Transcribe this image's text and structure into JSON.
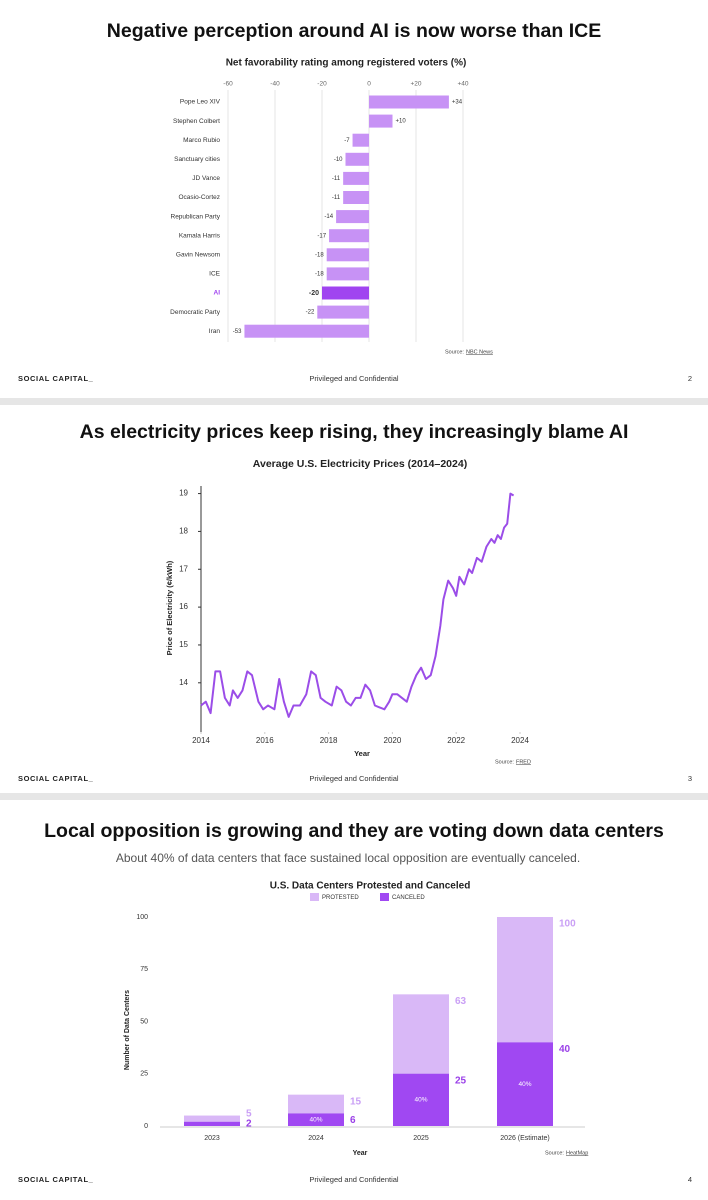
{
  "footer": {
    "brand": "SOCIAL CAPITAL_",
    "center": "Privileged and Confidential"
  },
  "slides": [
    {
      "title": "Negative perception around AI is now worse than ICE",
      "page": 2
    },
    {
      "title": "As electricity prices keep rising, they increasingly blame AI",
      "page": 3
    },
    {
      "title": "Local opposition is growing and they are voting down data centers",
      "subtitle": "About 40% of data centers that face sustained local opposition are eventually canceled.",
      "page": 4
    }
  ],
  "chart_data": [
    {
      "type": "barh",
      "title": "Net favorability rating among registered voters (%)",
      "categories": [
        "Pope Leo XIV",
        "Stephen Colbert",
        "Marco Rubio",
        "Sanctuary cities",
        "JD Vance",
        "Ocasio-Cortez",
        "Republican Party",
        "Kamala Harris",
        "Gavin Newsom",
        "ICE",
        "AI",
        "Democratic Party",
        "Iran"
      ],
      "values": [
        34,
        10,
        -7,
        -10,
        -11,
        -11,
        -14,
        -17,
        -18,
        -18,
        -20,
        -22,
        -53
      ],
      "value_labels": [
        "+34",
        "+10",
        "-7",
        "-10",
        "-11",
        "-11",
        "-14",
        "-17",
        "-18",
        "-18",
        "-20",
        "-22",
        "-53"
      ],
      "color": "#c792f5",
      "colors": [
        "#c792f5",
        "#c792f5",
        "#c792f5",
        "#c792f5",
        "#c792f5",
        "#c792f5",
        "#c792f5",
        "#c792f5",
        "#c792f5",
        "#c792f5",
        "#a044f0",
        "#c792f5",
        "#c792f5"
      ],
      "xlim": [
        -60,
        40
      ],
      "xticks": [
        -60,
        -40,
        -20,
        0,
        {
          "value": 20,
          "label": "+20"
        },
        {
          "value": 40,
          "label": "+40"
        }
      ],
      "grid": true,
      "source": {
        "label": "Source:",
        "name": "NBC News"
      }
    },
    {
      "type": "line",
      "title": "Average U.S. Electricity Prices (2014–2024)",
      "x_label": "Year",
      "y_label": "Price of Electricity (¢/kWh)",
      "color": "#9b4de8",
      "x": [
        2014.0,
        2014.15,
        2014.3,
        2014.45,
        2014.6,
        2014.75,
        2014.9,
        2015.0,
        2015.15,
        2015.3,
        2015.45,
        2015.6,
        2015.8,
        2015.95,
        2016.1,
        2016.3,
        2016.45,
        2016.6,
        2016.75,
        2016.9,
        2017.1,
        2017.3,
        2017.45,
        2017.6,
        2017.75,
        2017.9,
        2018.1,
        2018.25,
        2018.4,
        2018.55,
        2018.7,
        2018.85,
        2019.0,
        2019.15,
        2019.3,
        2019.45,
        2019.6,
        2019.75,
        2019.9,
        2020.0,
        2020.15,
        2020.3,
        2020.45,
        2020.6,
        2020.75,
        2020.9,
        2021.05,
        2021.2,
        2021.35,
        2021.5,
        2021.6,
        2021.75,
        2021.9,
        2022.0,
        2022.1,
        2022.25,
        2022.4,
        2022.5,
        2022.65,
        2022.8,
        2022.95,
        2023.1,
        2023.2,
        2023.3,
        2023.4,
        2023.5,
        2023.6,
        2023.7,
        2023.8
      ],
      "values": [
        13.4,
        13.5,
        13.2,
        14.3,
        14.3,
        13.6,
        13.4,
        13.8,
        13.6,
        13.8,
        14.3,
        14.2,
        13.5,
        13.3,
        13.4,
        13.3,
        14.1,
        13.5,
        13.1,
        13.4,
        13.4,
        13.7,
        14.3,
        14.2,
        13.6,
        13.5,
        13.4,
        13.9,
        13.8,
        13.5,
        13.4,
        13.6,
        13.6,
        13.95,
        13.8,
        13.4,
        13.35,
        13.3,
        13.5,
        13.7,
        13.7,
        13.6,
        13.5,
        13.9,
        14.2,
        14.4,
        14.1,
        14.2,
        14.7,
        15.5,
        16.2,
        16.7,
        16.5,
        16.3,
        16.8,
        16.6,
        17.0,
        16.9,
        17.3,
        17.2,
        17.6,
        17.8,
        17.7,
        17.9,
        17.8,
        18.1,
        18.2,
        19.0,
        18.95
      ],
      "xlim": [
        2014,
        2024
      ],
      "xticks": [
        2014,
        2016,
        2018,
        2020,
        2022,
        2024
      ],
      "ylim": [
        12.7,
        19.2
      ],
      "yticks": [
        14,
        15,
        16,
        17,
        18,
        19
      ],
      "grid": false,
      "source": {
        "label": "Source:",
        "name": "FRED"
      }
    },
    {
      "type": "bar",
      "title": "U.S. Data Centers Protested and Canceled",
      "x_label": "Year",
      "y_label": "Number of Data Centers",
      "categories": [
        "2023",
        "2024",
        "2025",
        "2026 (Estimate)"
      ],
      "series": [
        {
          "name": "PROTESTED",
          "color": "#d9b8f7",
          "label_color": "#caa0f5",
          "values": [
            5,
            15,
            63,
            100
          ]
        },
        {
          "name": "CANCELED",
          "color": "#a048f2",
          "label_color": "#9a3fe8",
          "values": [
            2,
            6,
            25,
            40
          ],
          "inner_labels": [
            null,
            "40%",
            "40%",
            "40%"
          ]
        }
      ],
      "ylim": [
        0,
        100
      ],
      "yticks": [
        0,
        25,
        50,
        75,
        100
      ],
      "grid": false,
      "source": {
        "label": "Source:",
        "name": "HeatMap"
      }
    }
  ]
}
